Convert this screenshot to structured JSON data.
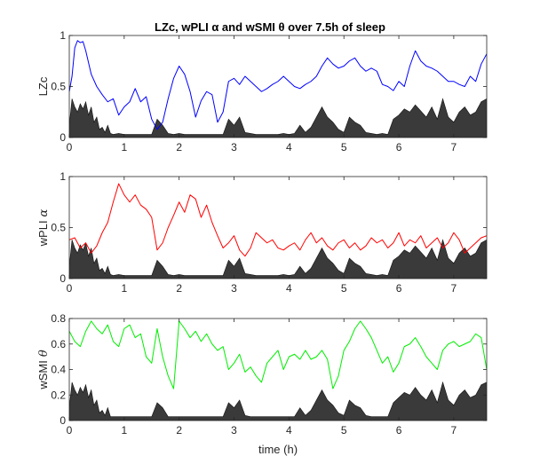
{
  "figure_title": "LZc, wPLI α and wSMI θ over 7.5h of sleep",
  "xlabel": "time (h)",
  "chart_data": [
    {
      "type": "line",
      "title": "LZc, wPLI α and wSMI θ over 7.5h of sleep",
      "ylabel": "LZc",
      "ylabel_symbol": "",
      "xlim": [
        0,
        7.6
      ],
      "ylim": [
        0,
        1
      ],
      "xticks": [
        0,
        1,
        2,
        3,
        4,
        5,
        6,
        7
      ],
      "yticks": [
        0,
        0.5,
        1
      ],
      "line_color": "#0000ff",
      "fill_color": "#3a3a3a",
      "series": [
        {
          "x": [
            0,
            0.05,
            0.1,
            0.15,
            0.2,
            0.25,
            0.3,
            0.4,
            0.5,
            0.6,
            0.7,
            0.8,
            0.9,
            1.0,
            1.1,
            1.2,
            1.3,
            1.4,
            1.5,
            1.6,
            1.7,
            1.8,
            1.9,
            2.0,
            2.1,
            2.2,
            2.3,
            2.4,
            2.5,
            2.6,
            2.7,
            2.8,
            2.9,
            3.0,
            3.1,
            3.2,
            3.3,
            3.4,
            3.5,
            3.6,
            3.7,
            3.8,
            3.9,
            4.0,
            4.1,
            4.2,
            4.3,
            4.4,
            4.5,
            4.6,
            4.7,
            4.8,
            4.9,
            5.0,
            5.1,
            5.2,
            5.3,
            5.4,
            5.5,
            5.6,
            5.7,
            5.8,
            5.9,
            6.0,
            6.1,
            6.2,
            6.3,
            6.4,
            6.5,
            6.6,
            6.7,
            6.8,
            6.9,
            7.0,
            7.1,
            7.2,
            7.3,
            7.4,
            7.5,
            7.6
          ],
          "y": [
            0.45,
            0.6,
            0.88,
            0.95,
            0.93,
            0.94,
            0.85,
            0.62,
            0.5,
            0.42,
            0.35,
            0.38,
            0.22,
            0.3,
            0.35,
            0.48,
            0.35,
            0.4,
            0.18,
            0.08,
            0.15,
            0.38,
            0.58,
            0.7,
            0.62,
            0.45,
            0.2,
            0.36,
            0.45,
            0.42,
            0.15,
            0.25,
            0.55,
            0.58,
            0.52,
            0.6,
            0.55,
            0.5,
            0.45,
            0.48,
            0.52,
            0.55,
            0.6,
            0.55,
            0.5,
            0.48,
            0.52,
            0.55,
            0.6,
            0.7,
            0.78,
            0.72,
            0.68,
            0.7,
            0.75,
            0.78,
            0.7,
            0.65,
            0.68,
            0.65,
            0.52,
            0.5,
            0.46,
            0.55,
            0.5,
            0.7,
            0.85,
            0.75,
            0.7,
            0.68,
            0.65,
            0.6,
            0.55,
            0.55,
            0.52,
            0.5,
            0.6,
            0.55,
            0.72,
            0.82
          ]
        }
      ],
      "power_fill": {
        "x": [
          0,
          0.05,
          0.1,
          0.15,
          0.2,
          0.25,
          0.3,
          0.35,
          0.4,
          0.45,
          0.5,
          0.55,
          0.6,
          0.65,
          0.7,
          0.75,
          0.8,
          0.9,
          1.0,
          1.1,
          1.2,
          1.3,
          1.4,
          1.5,
          1.6,
          1.7,
          1.8,
          1.9,
          2.0,
          2.1,
          2.2,
          2.3,
          2.4,
          2.5,
          2.6,
          2.7,
          2.8,
          2.9,
          3.0,
          3.1,
          3.2,
          3.3,
          3.4,
          3.5,
          3.6,
          3.7,
          3.8,
          3.9,
          4.0,
          4.1,
          4.2,
          4.3,
          4.4,
          4.5,
          4.6,
          4.7,
          4.8,
          4.9,
          5.0,
          5.1,
          5.2,
          5.3,
          5.4,
          5.5,
          5.6,
          5.7,
          5.8,
          5.9,
          6.0,
          6.1,
          6.2,
          6.3,
          6.4,
          6.5,
          6.6,
          6.7,
          6.8,
          6.9,
          7.0,
          7.1,
          7.2,
          7.3,
          7.4,
          7.5,
          7.6
        ],
        "y": [
          0.12,
          0.38,
          0.3,
          0.25,
          0.33,
          0.28,
          0.35,
          0.22,
          0.3,
          0.15,
          0.2,
          0.08,
          0.1,
          0.05,
          0.12,
          0.04,
          0.03,
          0.04,
          0.03,
          0.03,
          0.03,
          0.03,
          0.03,
          0.03,
          0.18,
          0.12,
          0.04,
          0.03,
          0.04,
          0.03,
          0.03,
          0.03,
          0.03,
          0.03,
          0.03,
          0.03,
          0.03,
          0.18,
          0.12,
          0.2,
          0.05,
          0.04,
          0.03,
          0.03,
          0.03,
          0.03,
          0.03,
          0.04,
          0.03,
          0.04,
          0.12,
          0.05,
          0.1,
          0.2,
          0.3,
          0.2,
          0.15,
          0.08,
          0.05,
          0.2,
          0.15,
          0.12,
          0.05,
          0.04,
          0.03,
          0.04,
          0.03,
          0.18,
          0.22,
          0.28,
          0.25,
          0.32,
          0.26,
          0.2,
          0.3,
          0.18,
          0.38,
          0.2,
          0.15,
          0.25,
          0.3,
          0.22,
          0.25,
          0.35,
          0.38
        ]
      }
    },
    {
      "type": "line",
      "ylabel": "wPLI",
      "ylabel_symbol": "α",
      "xlim": [
        0,
        7.6
      ],
      "ylim": [
        0,
        1
      ],
      "xticks": [
        0,
        1,
        2,
        3,
        4,
        5,
        6,
        7
      ],
      "yticks": [
        0,
        0.5,
        1
      ],
      "line_color": "#ff0000",
      "fill_color": "#3a3a3a",
      "series": [
        {
          "x": [
            0,
            0.1,
            0.2,
            0.3,
            0.4,
            0.5,
            0.6,
            0.7,
            0.8,
            0.9,
            1.0,
            1.1,
            1.2,
            1.3,
            1.4,
            1.5,
            1.6,
            1.7,
            1.8,
            1.9,
            2.0,
            2.1,
            2.2,
            2.3,
            2.4,
            2.5,
            2.6,
            2.7,
            2.8,
            2.9,
            3.0,
            3.1,
            3.2,
            3.3,
            3.4,
            3.5,
            3.6,
            3.7,
            3.8,
            3.9,
            4.0,
            4.1,
            4.2,
            4.3,
            4.4,
            4.5,
            4.6,
            4.7,
            4.8,
            4.9,
            5.0,
            5.1,
            5.2,
            5.3,
            5.4,
            5.5,
            5.6,
            5.7,
            5.8,
            5.9,
            6.0,
            6.1,
            6.2,
            6.3,
            6.4,
            6.5,
            6.6,
            6.7,
            6.8,
            6.9,
            7.0,
            7.1,
            7.2,
            7.3,
            7.4,
            7.5,
            7.6
          ],
          "y": [
            0.38,
            0.4,
            0.3,
            0.35,
            0.25,
            0.32,
            0.45,
            0.55,
            0.75,
            0.93,
            0.82,
            0.75,
            0.82,
            0.72,
            0.68,
            0.6,
            0.28,
            0.35,
            0.5,
            0.62,
            0.75,
            0.65,
            0.82,
            0.78,
            0.6,
            0.72,
            0.55,
            0.42,
            0.3,
            0.35,
            0.42,
            0.28,
            0.22,
            0.3,
            0.45,
            0.4,
            0.35,
            0.38,
            0.3,
            0.28,
            0.32,
            0.35,
            0.28,
            0.38,
            0.45,
            0.35,
            0.4,
            0.32,
            0.28,
            0.35,
            0.38,
            0.3,
            0.35,
            0.28,
            0.32,
            0.4,
            0.35,
            0.38,
            0.3,
            0.35,
            0.45,
            0.32,
            0.38,
            0.35,
            0.42,
            0.3,
            0.35,
            0.4,
            0.3,
            0.35,
            0.45,
            0.38,
            0.25,
            0.3,
            0.35,
            0.4,
            0.42
          ]
        }
      ],
      "power_fill": {
        "x": [
          0,
          0.05,
          0.1,
          0.15,
          0.2,
          0.25,
          0.3,
          0.35,
          0.4,
          0.45,
          0.5,
          0.55,
          0.6,
          0.65,
          0.7,
          0.75,
          0.8,
          0.9,
          1.0,
          1.1,
          1.2,
          1.3,
          1.4,
          1.5,
          1.6,
          1.7,
          1.8,
          1.9,
          2.0,
          2.1,
          2.2,
          2.3,
          2.4,
          2.5,
          2.6,
          2.7,
          2.8,
          2.9,
          3.0,
          3.1,
          3.2,
          3.3,
          3.4,
          3.5,
          3.6,
          3.7,
          3.8,
          3.9,
          4.0,
          4.1,
          4.2,
          4.3,
          4.4,
          4.5,
          4.6,
          4.7,
          4.8,
          4.9,
          5.0,
          5.1,
          5.2,
          5.3,
          5.4,
          5.5,
          5.6,
          5.7,
          5.8,
          5.9,
          6.0,
          6.1,
          6.2,
          6.3,
          6.4,
          6.5,
          6.6,
          6.7,
          6.8,
          6.9,
          7.0,
          7.1,
          7.2,
          7.3,
          7.4,
          7.5,
          7.6
        ],
        "y": [
          0.12,
          0.38,
          0.3,
          0.25,
          0.33,
          0.28,
          0.35,
          0.22,
          0.3,
          0.15,
          0.2,
          0.08,
          0.1,
          0.05,
          0.12,
          0.04,
          0.03,
          0.04,
          0.03,
          0.03,
          0.03,
          0.03,
          0.03,
          0.03,
          0.18,
          0.12,
          0.04,
          0.03,
          0.04,
          0.03,
          0.03,
          0.03,
          0.03,
          0.03,
          0.03,
          0.03,
          0.03,
          0.18,
          0.12,
          0.2,
          0.05,
          0.04,
          0.03,
          0.03,
          0.03,
          0.03,
          0.03,
          0.04,
          0.03,
          0.04,
          0.12,
          0.05,
          0.1,
          0.2,
          0.3,
          0.2,
          0.15,
          0.08,
          0.05,
          0.2,
          0.15,
          0.12,
          0.05,
          0.04,
          0.03,
          0.04,
          0.03,
          0.18,
          0.22,
          0.28,
          0.25,
          0.32,
          0.26,
          0.2,
          0.3,
          0.18,
          0.38,
          0.2,
          0.15,
          0.25,
          0.3,
          0.22,
          0.25,
          0.35,
          0.38
        ]
      }
    },
    {
      "type": "line",
      "ylabel": "wSMI",
      "ylabel_symbol": "θ",
      "xlim": [
        0,
        7.6
      ],
      "ylim": [
        0,
        0.8
      ],
      "xticks": [
        0,
        1,
        2,
        3,
        4,
        5,
        6,
        7
      ],
      "yticks": [
        0,
        0.2,
        0.4,
        0.6,
        0.8
      ],
      "line_color": "#00ee00",
      "fill_color": "#3a3a3a",
      "series": [
        {
          "x": [
            0,
            0.1,
            0.2,
            0.3,
            0.4,
            0.5,
            0.6,
            0.7,
            0.8,
            0.9,
            1.0,
            1.1,
            1.2,
            1.3,
            1.4,
            1.5,
            1.6,
            1.7,
            1.8,
            1.9,
            2.0,
            2.1,
            2.2,
            2.3,
            2.4,
            2.5,
            2.6,
            2.7,
            2.8,
            2.9,
            3.0,
            3.1,
            3.2,
            3.3,
            3.4,
            3.5,
            3.6,
            3.7,
            3.8,
            3.9,
            4.0,
            4.1,
            4.2,
            4.3,
            4.4,
            4.5,
            4.6,
            4.7,
            4.8,
            4.9,
            5.0,
            5.1,
            5.2,
            5.3,
            5.4,
            5.5,
            5.6,
            5.7,
            5.8,
            5.9,
            6.0,
            6.1,
            6.2,
            6.3,
            6.4,
            6.5,
            6.6,
            6.7,
            6.8,
            6.9,
            7.0,
            7.1,
            7.2,
            7.3,
            7.4,
            7.5,
            7.6
          ],
          "y": [
            0.7,
            0.62,
            0.58,
            0.7,
            0.78,
            0.72,
            0.68,
            0.75,
            0.62,
            0.58,
            0.72,
            0.75,
            0.65,
            0.68,
            0.5,
            0.45,
            0.72,
            0.5,
            0.35,
            0.25,
            0.78,
            0.72,
            0.65,
            0.7,
            0.62,
            0.68,
            0.6,
            0.55,
            0.58,
            0.4,
            0.45,
            0.52,
            0.38,
            0.42,
            0.35,
            0.3,
            0.45,
            0.5,
            0.55,
            0.4,
            0.5,
            0.52,
            0.48,
            0.55,
            0.48,
            0.5,
            0.55,
            0.48,
            0.25,
            0.35,
            0.55,
            0.62,
            0.72,
            0.78,
            0.72,
            0.65,
            0.55,
            0.45,
            0.5,
            0.38,
            0.45,
            0.58,
            0.6,
            0.65,
            0.58,
            0.5,
            0.45,
            0.4,
            0.55,
            0.6,
            0.62,
            0.58,
            0.6,
            0.62,
            0.68,
            0.65,
            0.4
          ]
        }
      ],
      "power_fill": {
        "x": [
          0,
          0.05,
          0.1,
          0.15,
          0.2,
          0.25,
          0.3,
          0.35,
          0.4,
          0.45,
          0.5,
          0.55,
          0.6,
          0.65,
          0.7,
          0.75,
          0.8,
          0.9,
          1.0,
          1.1,
          1.2,
          1.3,
          1.4,
          1.5,
          1.6,
          1.7,
          1.8,
          1.9,
          2.0,
          2.1,
          2.2,
          2.3,
          2.4,
          2.5,
          2.6,
          2.7,
          2.8,
          2.9,
          3.0,
          3.1,
          3.2,
          3.3,
          3.4,
          3.5,
          3.6,
          3.7,
          3.8,
          3.9,
          4.0,
          4.1,
          4.2,
          4.3,
          4.4,
          4.5,
          4.6,
          4.7,
          4.8,
          4.9,
          5.0,
          5.1,
          5.2,
          5.3,
          5.4,
          5.5,
          5.6,
          5.7,
          5.8,
          5.9,
          6.0,
          6.1,
          6.2,
          6.3,
          6.4,
          6.5,
          6.6,
          6.7,
          6.8,
          6.9,
          7.0,
          7.1,
          7.2,
          7.3,
          7.4,
          7.5,
          7.6
        ],
        "y": [
          0.1,
          0.3,
          0.24,
          0.2,
          0.26,
          0.22,
          0.28,
          0.18,
          0.24,
          0.12,
          0.16,
          0.06,
          0.08,
          0.04,
          0.1,
          0.03,
          0.03,
          0.03,
          0.03,
          0.03,
          0.03,
          0.03,
          0.03,
          0.03,
          0.14,
          0.1,
          0.03,
          0.03,
          0.03,
          0.03,
          0.03,
          0.03,
          0.03,
          0.03,
          0.03,
          0.03,
          0.03,
          0.14,
          0.1,
          0.16,
          0.04,
          0.03,
          0.03,
          0.03,
          0.03,
          0.03,
          0.03,
          0.03,
          0.03,
          0.03,
          0.1,
          0.04,
          0.08,
          0.16,
          0.24,
          0.16,
          0.12,
          0.06,
          0.04,
          0.16,
          0.12,
          0.1,
          0.04,
          0.03,
          0.03,
          0.03,
          0.03,
          0.14,
          0.18,
          0.22,
          0.2,
          0.26,
          0.2,
          0.16,
          0.24,
          0.14,
          0.3,
          0.16,
          0.12,
          0.2,
          0.24,
          0.18,
          0.2,
          0.28,
          0.3
        ]
      }
    }
  ]
}
